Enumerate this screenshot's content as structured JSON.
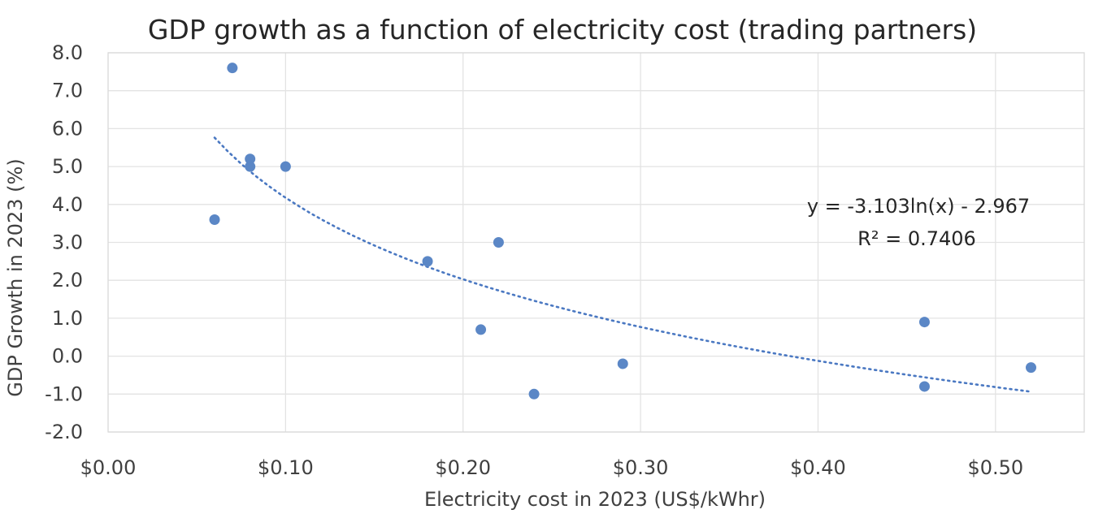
{
  "chart_data": {
    "type": "scatter",
    "title": "GDP growth as a function of electricity cost (trading partners)",
    "xlabel": "Electricity cost in 2023  (US$/kWhr)",
    "ylabel": "GDP Growth in 2023 (%)",
    "xlim": [
      0.0,
      0.55
    ],
    "ylim": [
      -2.0,
      8.0
    ],
    "x_ticks": [
      0.0,
      0.1,
      0.2,
      0.3,
      0.4,
      0.5
    ],
    "x_tick_labels": [
      "$0.00",
      "$0.10",
      "$0.20",
      "$0.30",
      "$0.40",
      "$0.50"
    ],
    "y_ticks": [
      8.0,
      7.0,
      6.0,
      5.0,
      4.0,
      3.0,
      2.0,
      1.0,
      0.0,
      -1.0,
      -2.0
    ],
    "y_tick_labels": [
      "8.0",
      "7.0",
      "6.0",
      "5.0",
      "4.0",
      "3.0",
      "2.0",
      "1.0",
      "0.0",
      "-1.0",
      "-2.0"
    ],
    "grid": true,
    "series": [
      {
        "name": "Trading partners",
        "points": [
          {
            "x": 0.06,
            "y": 3.6
          },
          {
            "x": 0.07,
            "y": 7.6
          },
          {
            "x": 0.08,
            "y": 5.2
          },
          {
            "x": 0.08,
            "y": 5.0
          },
          {
            "x": 0.1,
            "y": 5.0
          },
          {
            "x": 0.18,
            "y": 2.5
          },
          {
            "x": 0.21,
            "y": 0.7
          },
          {
            "x": 0.22,
            "y": 3.0
          },
          {
            "x": 0.24,
            "y": -1.0
          },
          {
            "x": 0.29,
            "y": -0.2
          },
          {
            "x": 0.46,
            "y": 0.9
          },
          {
            "x": 0.46,
            "y": -0.8
          },
          {
            "x": 0.52,
            "y": -0.3
          }
        ]
      }
    ],
    "trendline": {
      "type": "logarithmic",
      "a": -3.103,
      "b": -2.967,
      "x_range": [
        0.06,
        0.52
      ],
      "equation": "y = -3.103ln(x) - 2.967",
      "r_squared": "R² = 0.7406"
    },
    "colors": {
      "marker": "#5b87c6",
      "trendline": "#4a78c2",
      "grid": "#e3e3e3"
    }
  }
}
